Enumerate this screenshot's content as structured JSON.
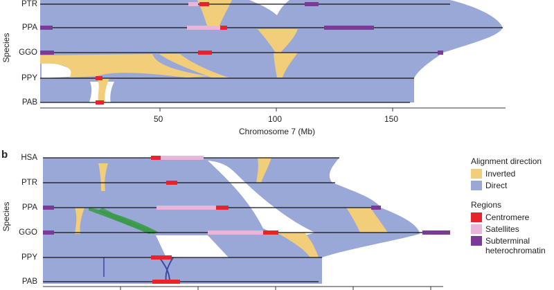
{
  "panel_a": {
    "species": [
      "PTR",
      "PPA",
      "GGO",
      "PPY",
      "PAB"
    ],
    "y_axis_label": "Species",
    "x_axis_label": "Chromosome 7 (Mb)",
    "x_ticks": [
      "50",
      "100",
      "150"
    ]
  },
  "panel_b": {
    "letter": "b",
    "species": [
      "HSA",
      "PTR",
      "PPA",
      "GGO",
      "PPY",
      "PAB"
    ],
    "y_axis_label": "Species"
  },
  "legend": {
    "alignment_title": "Alignment direction",
    "inverted": "Inverted",
    "direct": "Direct",
    "regions_title": "Regions",
    "centromere": "Centromere",
    "satellites": "Satellites",
    "subterminal": "Subterminal heterochromatin"
  },
  "colors": {
    "direct": "#9aa8d8",
    "inverted": "#f2cd7a",
    "centromere": "#e8232b",
    "satellites": "#e9b6d9",
    "subterminal": "#7b3a96",
    "green_band": "#3a9a4a",
    "dark_blue": "#3b4aa0"
  }
}
